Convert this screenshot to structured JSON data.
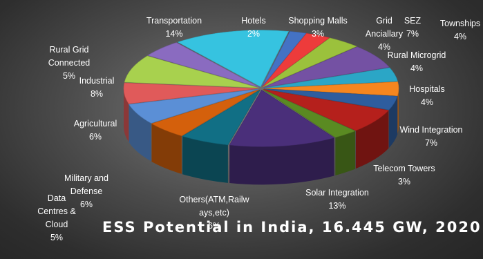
{
  "chart_data": {
    "type": "pie",
    "title": "ESS Potential in India, 16.445 GW, 2020",
    "slices": [
      {
        "label": "Hotels",
        "value": 2,
        "display": "2%",
        "color": "#4472c4"
      },
      {
        "label": "Shopping Malls",
        "value": 3,
        "display": "3%",
        "color": "#ed3b3b"
      },
      {
        "label": "Grid Anciallary",
        "value": 4,
        "display": "4%",
        "color": "#9bc13c"
      },
      {
        "label": "SEZ",
        "value": 7,
        "display": "7%",
        "color": "#7451a3"
      },
      {
        "label": "Townships",
        "value": 4,
        "display": "4%",
        "color": "#2ba6c6"
      },
      {
        "label": "Rural Microgrid",
        "value": 4,
        "display": "4%",
        "color": "#f5861f"
      },
      {
        "label": "Hospitals",
        "value": 4,
        "display": "4%",
        "color": "#2e5d9e"
      },
      {
        "label": "Wind Integration",
        "value": 7,
        "display": "7%",
        "color": "#b5201c"
      },
      {
        "label": "Telecom Towers",
        "value": 3,
        "display": "3%",
        "color": "#5a8a22"
      },
      {
        "label": "Solar Integration",
        "value": 13,
        "display": "13%",
        "color": "#4a2f7a"
      },
      {
        "label": "Others(ATM,Railways,etc)",
        "value": 6,
        "display": "6%",
        "color": "#116f85"
      },
      {
        "label": "Data Centres & Cloud",
        "value": 5,
        "display": "5%",
        "color": "#d4600c"
      },
      {
        "label": "Military and Defense",
        "value": 6,
        "display": "6%",
        "color": "#5b8fd6"
      },
      {
        "label": "Agricultural",
        "value": 6,
        "display": "6%",
        "color": "#e05a5a"
      },
      {
        "label": "Industrial",
        "value": 8,
        "display": "8%",
        "color": "#a8d14e"
      },
      {
        "label": "Rural Grid Connected",
        "value": 5,
        "display": "5%",
        "color": "#8a6bc0"
      },
      {
        "label": "Transportation",
        "value": 14,
        "display": "14%",
        "color": "#36c3e0"
      }
    ]
  }
}
